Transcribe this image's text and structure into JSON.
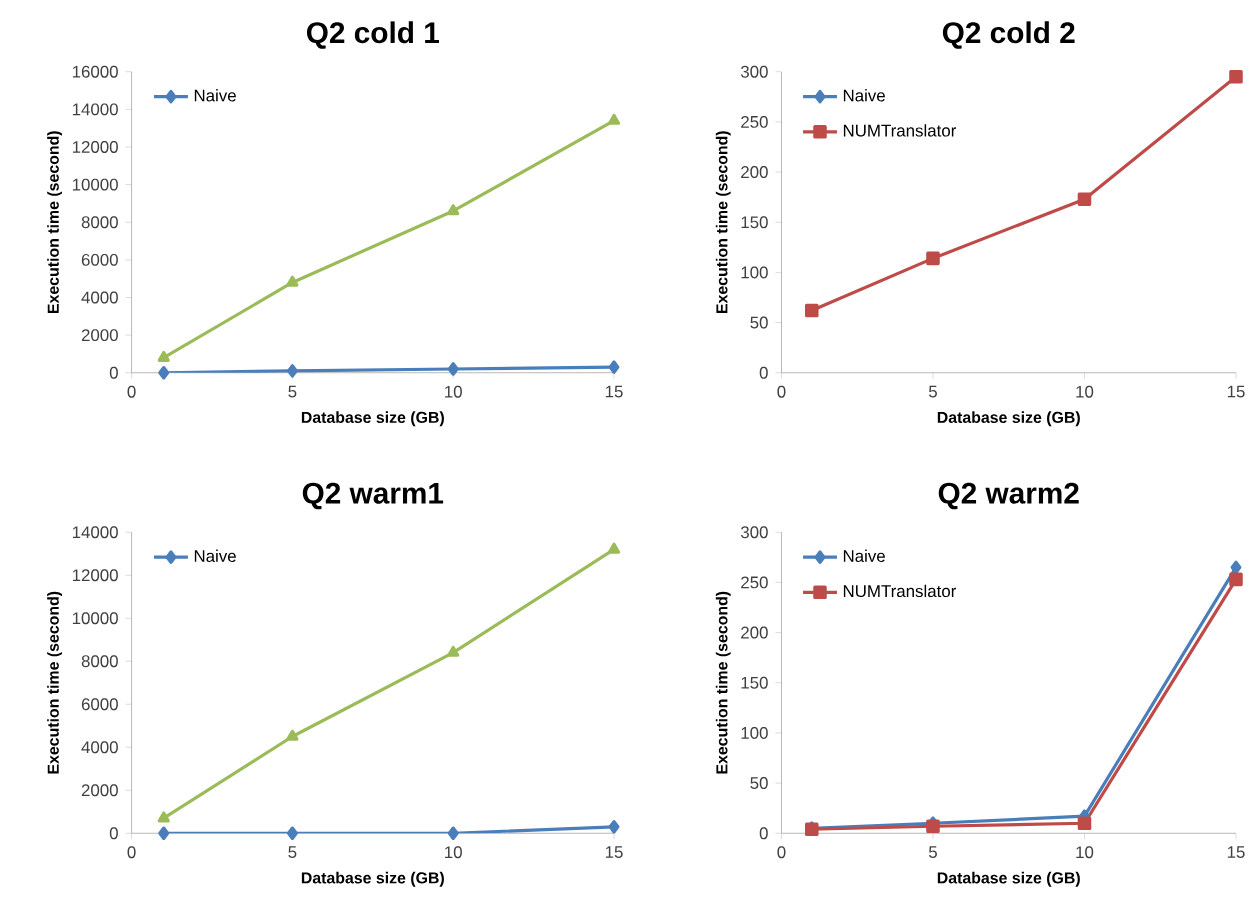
{
  "chart_data": [
    {
      "type": "line",
      "title": "Q2 cold 1",
      "xlabel": "Database size (GB)",
      "ylabel": "Execution time (second)",
      "x": [
        1,
        5,
        10,
        15
      ],
      "xlim": [
        0,
        15
      ],
      "xticks": [
        0,
        5,
        10,
        15
      ],
      "ylim": [
        0,
        16000
      ],
      "yticks": [
        0,
        2000,
        4000,
        6000,
        8000,
        10000,
        12000,
        14000,
        16000
      ],
      "legend": "top left",
      "grid": false,
      "series": [
        {
          "name": "Naive",
          "color": "#4a7ebb",
          "marker": "diamond",
          "values": [
            0,
            100,
            200,
            300
          ]
        },
        {
          "color": "#9bbb59",
          "marker": "triangle",
          "values": [
            800,
            4800,
            8600,
            13400
          ]
        }
      ]
    },
    {
      "type": "line",
      "title": "Q2 cold 2",
      "xlabel": "Database size (GB)",
      "ylabel": "Execution time (second)",
      "x": [
        1,
        5,
        10,
        15
      ],
      "xlim": [
        0,
        15
      ],
      "xticks": [
        0,
        5,
        10,
        15
      ],
      "ylim": [
        0,
        300
      ],
      "yticks": [
        0,
        50,
        100,
        150,
        200,
        250,
        300
      ],
      "legend": "top left",
      "grid": false,
      "series": [
        {
          "name": "Naive",
          "color": "#4a7ebb",
          "marker": "diamond",
          "values": [
            null,
            null,
            null,
            null
          ]
        },
        {
          "name": "NUMTranslator",
          "color": "#be4b48",
          "marker": "square",
          "values": [
            62,
            114,
            173,
            295
          ]
        }
      ]
    },
    {
      "type": "line",
      "title": "Q2 warm1",
      "xlabel": "Database size (GB)",
      "ylabel": "Execution time (second)",
      "x": [
        1,
        5,
        10,
        15
      ],
      "xlim": [
        0,
        15
      ],
      "xticks": [
        0,
        5,
        10,
        15
      ],
      "ylim": [
        0,
        14000
      ],
      "yticks": [
        0,
        2000,
        4000,
        6000,
        8000,
        10000,
        12000,
        14000
      ],
      "legend": "top left",
      "grid": false,
      "series": [
        {
          "name": "Naive",
          "color": "#4a7ebb",
          "marker": "diamond",
          "values": [
            0,
            0,
            0,
            300
          ]
        },
        {
          "color": "#9bbb59",
          "marker": "triangle",
          "values": [
            700,
            4500,
            8400,
            13200
          ]
        }
      ]
    },
    {
      "type": "line",
      "title": "Q2 warm2",
      "xlabel": "Database size (GB)",
      "ylabel": "Execution time (second)",
      "x": [
        1,
        5,
        10,
        15
      ],
      "xlim": [
        0,
        15
      ],
      "xticks": [
        0,
        5,
        10,
        15
      ],
      "ylim": [
        0,
        300
      ],
      "yticks": [
        0,
        50,
        100,
        150,
        200,
        250,
        300
      ],
      "legend": "top left",
      "grid": false,
      "series": [
        {
          "name": "Naive",
          "color": "#4a7ebb",
          "marker": "diamond",
          "values": [
            5,
            10,
            17,
            265
          ]
        },
        {
          "name": "NUMTranslator",
          "color": "#be4b48",
          "marker": "square",
          "values": [
            4,
            7,
            10,
            253
          ]
        }
      ]
    }
  ]
}
